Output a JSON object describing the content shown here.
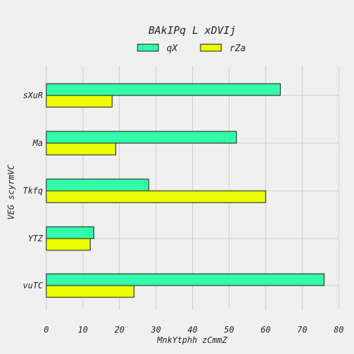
{
  "chart_data": {
    "type": "bar",
    "orientation": "horizontal",
    "title": "BAkIPq L xDVIj",
    "xlabel": "MnkYtphh zCmmZ",
    "ylabel": "VEG scyrmVC",
    "categories": [
      "sXuR",
      "Ma",
      "Tkfq",
      "YTZ",
      "vuTC"
    ],
    "series": [
      {
        "name": "qX",
        "color": "#33ffaa",
        "values": [
          64,
          52,
          28,
          13,
          76
        ]
      },
      {
        "name": "rZa",
        "color": "#eeff00",
        "values": [
          18,
          19,
          60,
          12,
          24
        ]
      }
    ],
    "xlim": [
      0,
      80
    ],
    "xticks": [
      "0",
      "10",
      "20",
      "30",
      "40",
      "50",
      "60",
      "70",
      "80"
    ],
    "grid": true,
    "legend": "top-center"
  }
}
